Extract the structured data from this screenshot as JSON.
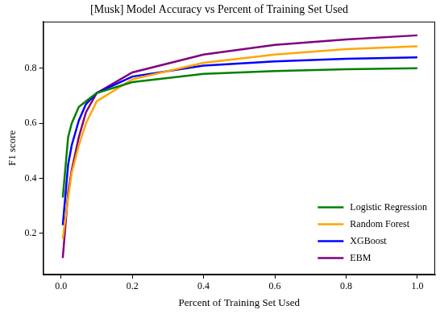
{
  "chart_data": {
    "type": "line",
    "title": "[Musk] Model Accuracy vs Percent of Training Set Used",
    "x_label": "Percent of Training Set Used",
    "y_label": "F1 score",
    "x": [
      0.005,
      0.02,
      0.03,
      0.05,
      0.07,
      0.1,
      0.2,
      0.4,
      0.6,
      0.8,
      1.0
    ],
    "series": [
      {
        "name": "Logistic Regression",
        "color": "#008000",
        "values": [
          0.33,
          0.55,
          0.6,
          0.66,
          0.68,
          0.71,
          0.75,
          0.78,
          0.79,
          0.797,
          0.8
        ]
      },
      {
        "name": "Random Forest",
        "color": "#ffa500",
        "values": [
          0.18,
          0.33,
          0.42,
          0.52,
          0.6,
          0.68,
          0.76,
          0.82,
          0.85,
          0.87,
          0.88
        ]
      },
      {
        "name": "XGBoost",
        "color": "#0000ff",
        "values": [
          0.23,
          0.45,
          0.52,
          0.61,
          0.67,
          0.71,
          0.77,
          0.81,
          0.825,
          0.835,
          0.84
        ]
      },
      {
        "name": "EBM",
        "color": "#800080",
        "values": [
          0.11,
          0.35,
          0.43,
          0.55,
          0.64,
          0.71,
          0.785,
          0.85,
          0.885,
          0.905,
          0.92
        ]
      }
    ],
    "xlim": [
      -0.05,
      1.05
    ],
    "xticks": [
      {
        "value": 0,
        "label": "0.0"
      },
      0.2,
      0.4,
      0.6,
      0.8,
      {
        "value": 1,
        "label": "1.0"
      }
    ],
    "ylim": [
      0.05,
      0.97
    ],
    "yticks": [
      0.2,
      0.4,
      0.6,
      0.8
    ],
    "grid": false,
    "legend": "lower right"
  }
}
